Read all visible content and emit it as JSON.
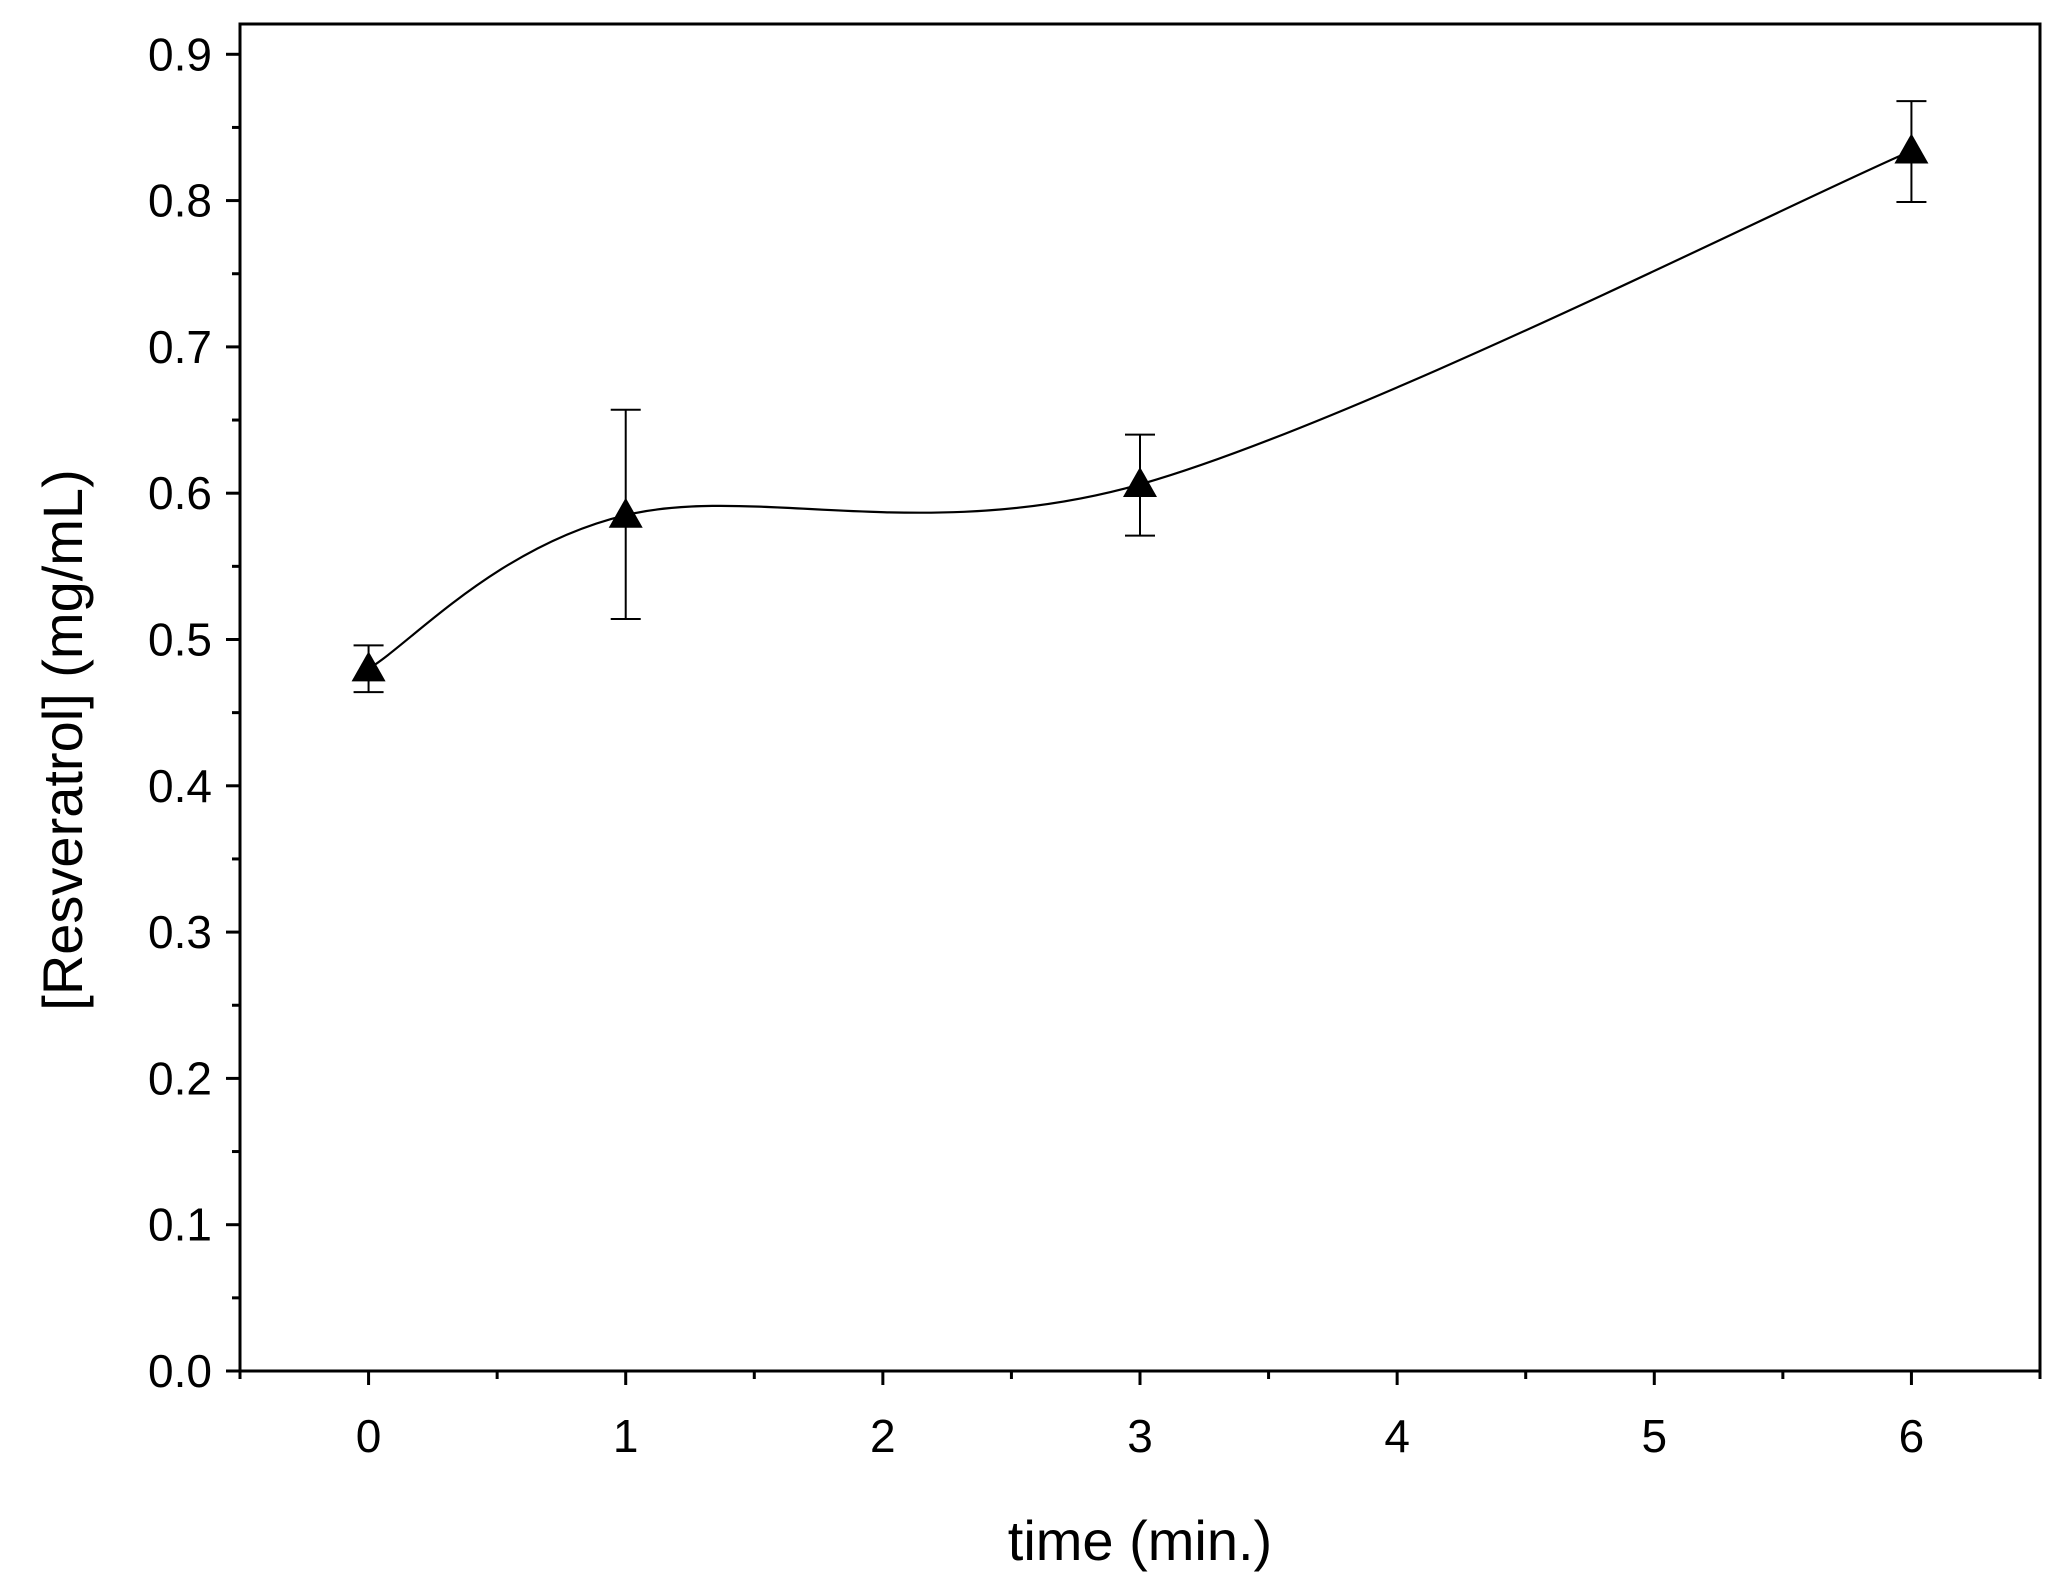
{
  "chart_data": {
    "type": "line",
    "xlabel": "time (min.)",
    "ylabel": "[Resveratrol] (mg/mL)",
    "xlim": [
      -0.5,
      6.5
    ],
    "ylim": [
      0.0,
      0.9
    ],
    "x_ticks": [
      "0",
      "1",
      "2",
      "3",
      "4",
      "5",
      "6"
    ],
    "y_ticks": [
      "0.0",
      "0.1",
      "0.2",
      "0.3",
      "0.4",
      "0.5",
      "0.6",
      "0.7",
      "0.8",
      "0.9"
    ],
    "x_minor_step": 0.5,
    "y_minor_step": 0.05,
    "grid": false,
    "series": [
      {
        "marker": "triangle",
        "color": "#000000",
        "line": "smooth",
        "x": [
          0,
          1,
          3,
          6
        ],
        "y": [
          0.48,
          0.585,
          0.606,
          0.834
        ],
        "error": [
          [
            0.464,
            0.496
          ],
          [
            0.514,
            0.657
          ],
          [
            0.571,
            0.64
          ],
          [
            0.799,
            0.868
          ]
        ]
      }
    ]
  }
}
